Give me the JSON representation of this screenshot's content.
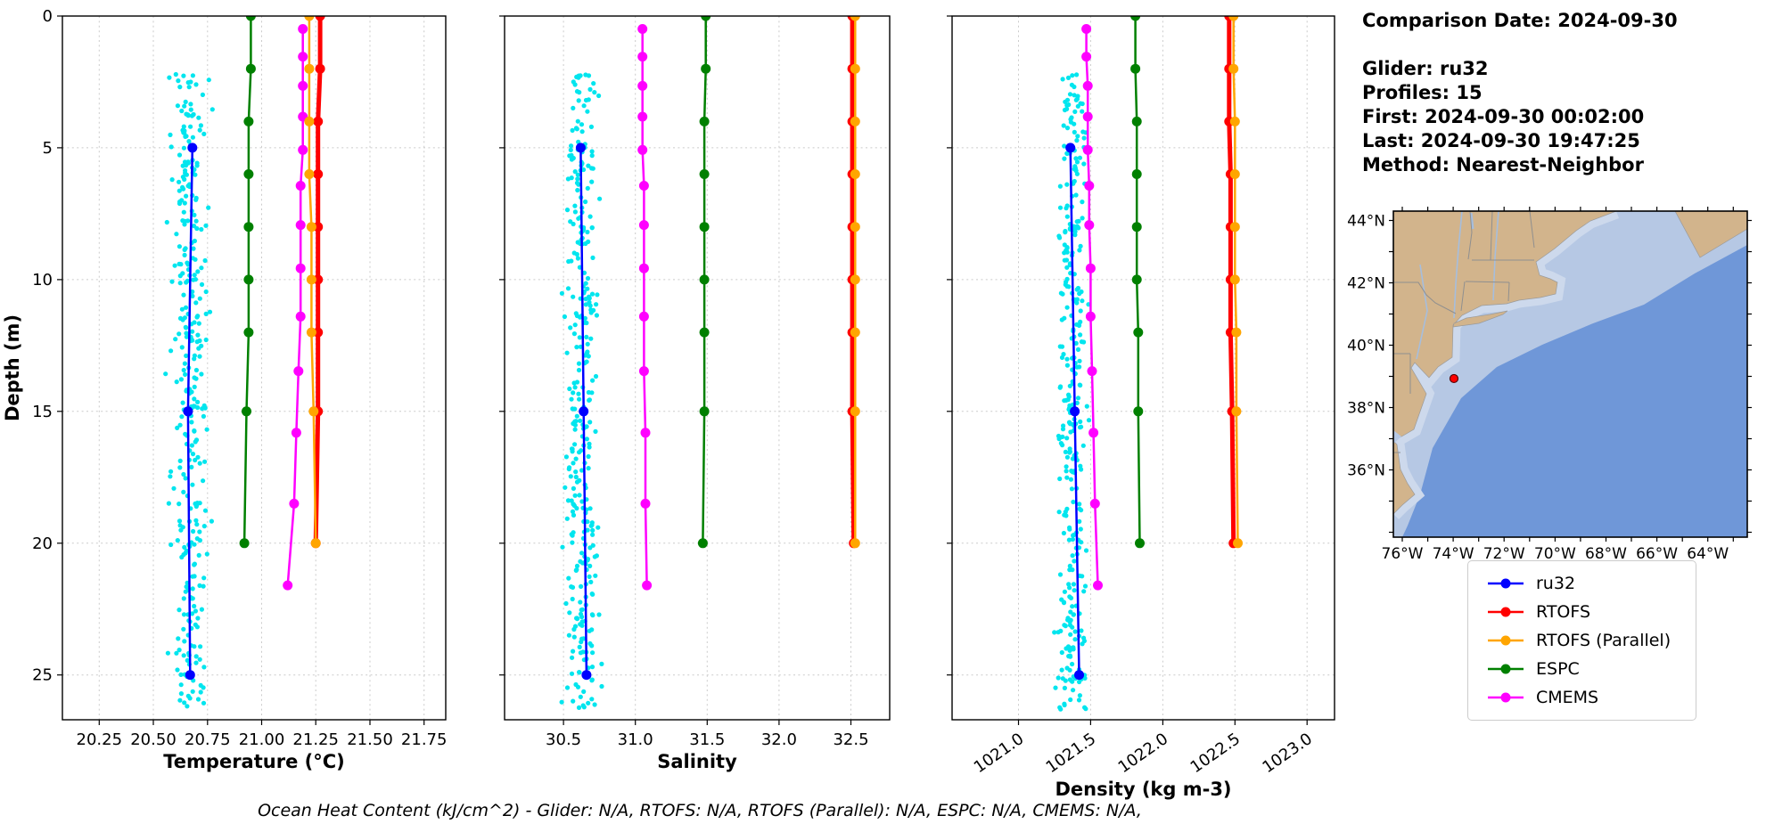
{
  "info_panel": {
    "comparison_date": "Comparison Date: 2024-09-30",
    "lines": [
      "Glider: ru32",
      "Profiles: 15",
      "First: 2024-09-30 00:02:00",
      "Last: 2024-09-30 19:47:25",
      "Method: Nearest-Neighbor"
    ]
  },
  "footer": "Ocean Heat Content (kJ/cm^2) - Glider: N/A,  RTOFS: N/A,  RTOFS (Parallel): N/A,  ESPC: N/A,  CMEMS: N/A,",
  "legend": {
    "entries": [
      {
        "label": "ru32",
        "color": "#0000ff"
      },
      {
        "label": "RTOFS",
        "color": "#ff0000"
      },
      {
        "label": "RTOFS (Parallel)",
        "color": "#ffa500"
      },
      {
        "label": "ESPC",
        "color": "#008000"
      },
      {
        "label": "CMEMS",
        "color": "#ff00ff"
      }
    ]
  },
  "map": {
    "land_color": "#d2b48c",
    "shelf_color": "#b6c8e4",
    "ocean_color": "#6f97d8",
    "coast_water_color": "#cdd9ec",
    "river_color": "#a6bedd",
    "border_color": "#8f8f8f",
    "marker_color": "#ff0000",
    "glider_lat": 38.93,
    "glider_lon": 73.97,
    "lat_ticks": [
      {
        "label": "44°N",
        "lat": 44
      },
      {
        "label": "42°N",
        "lat": 42
      },
      {
        "label": "40°N",
        "lat": 40
      },
      {
        "label": "38°N",
        "lat": 38
      },
      {
        "label": "36°N",
        "lat": 36
      }
    ],
    "lon_ticks": [
      {
        "label": "76°W",
        "lon": 76
      },
      {
        "label": "74°W",
        "lon": 74
      },
      {
        "label": "72°W",
        "lon": 72
      },
      {
        "label": "70°W",
        "lon": 70
      },
      {
        "label": "68°W",
        "lon": 68
      },
      {
        "label": "66°W",
        "lon": 66
      },
      {
        "label": "64°W",
        "lon": 64
      }
    ]
  },
  "chart_data": [
    {
      "type": "line",
      "xlabel": "Temperature (°C)",
      "ylabel": "Depth (m)",
      "xlim": [
        20.08,
        21.85
      ],
      "xticks": [
        20.25,
        20.5,
        20.75,
        21.0,
        21.25,
        21.5,
        21.75
      ],
      "xtick_labels": [
        "20.25",
        "20.50",
        "20.75",
        "21.00",
        "21.25",
        "21.50",
        "21.75"
      ],
      "ylim": [
        0,
        26.7
      ],
      "yticks": [
        0,
        5,
        10,
        15,
        20,
        25
      ],
      "grid": true,
      "scatter": {
        "name": "glider-raw-points",
        "color": "#00e5ee",
        "n": 330,
        "depth_min": 2.2,
        "depth_max": 26.3,
        "center": 20.67,
        "spread": 0.04,
        "seed": 11
      },
      "series": [
        {
          "name": "ESPC",
          "color": "#008000",
          "lw": 2.5,
          "ms": 5.5,
          "depths": [
            0,
            2,
            4,
            6,
            8,
            10,
            12,
            15,
            20
          ],
          "values": [
            20.95,
            20.95,
            20.94,
            20.94,
            20.94,
            20.94,
            20.94,
            20.93,
            20.92
          ]
        },
        {
          "name": "CMEMS",
          "color": "#ff00ff",
          "lw": 2.5,
          "ms": 5.5,
          "depths": [
            0.49,
            1.54,
            2.65,
            3.82,
            5.08,
            6.44,
            7.93,
            9.57,
            11.4,
            13.47,
            15.81,
            18.5,
            21.6
          ],
          "values": [
            21.19,
            21.19,
            21.19,
            21.19,
            21.19,
            21.18,
            21.18,
            21.18,
            21.18,
            21.17,
            21.16,
            21.15,
            21.12
          ]
        },
        {
          "name": "RTOFS",
          "color": "#ff0000",
          "lw": 5,
          "ms": 5.5,
          "depths": [
            0,
            2,
            4,
            6,
            8,
            10,
            12,
            15,
            20
          ],
          "values": [
            21.27,
            21.27,
            21.26,
            21.26,
            21.26,
            21.26,
            21.26,
            21.26,
            21.25
          ]
        },
        {
          "name": "RTOFS (Parallel)",
          "color": "#ffa500",
          "lw": 2.5,
          "ms": 5.5,
          "depths": [
            0,
            2,
            4,
            6,
            8,
            10,
            12,
            15,
            20
          ],
          "values": [
            21.22,
            21.22,
            21.22,
            21.22,
            21.23,
            21.23,
            21.23,
            21.24,
            21.25
          ]
        },
        {
          "name": "ru32",
          "color": "#0000ff",
          "lw": 2.5,
          "ms": 5.5,
          "depths": [
            5,
            15,
            25
          ],
          "values": [
            20.68,
            20.66,
            20.67
          ]
        }
      ]
    },
    {
      "type": "line",
      "xlabel": "Salinity",
      "ylabel": "Depth (m)",
      "xlim": [
        30.09,
        32.77
      ],
      "xticks": [
        30.5,
        31.0,
        31.5,
        32.0,
        32.5
      ],
      "xtick_labels": [
        "30.5",
        "31.0",
        "31.5",
        "32.0",
        "32.5"
      ],
      "ylim": [
        0,
        26.7
      ],
      "yticks": [
        0,
        5,
        10,
        15,
        20,
        25
      ],
      "grid": true,
      "scatter": {
        "name": "glider-raw-points",
        "color": "#00e5ee",
        "n": 330,
        "depth_min": 2.2,
        "depth_max": 26.3,
        "center": 30.63,
        "spread": 0.055,
        "seed": 22
      },
      "series": [
        {
          "name": "ESPC",
          "color": "#008000",
          "lw": 2.5,
          "ms": 5.5,
          "depths": [
            0,
            2,
            4,
            6,
            8,
            10,
            12,
            15,
            20
          ],
          "values": [
            31.49,
            31.49,
            31.48,
            31.48,
            31.48,
            31.48,
            31.48,
            31.48,
            31.47
          ]
        },
        {
          "name": "CMEMS",
          "color": "#ff00ff",
          "lw": 2.5,
          "ms": 5.5,
          "depths": [
            0.49,
            1.54,
            2.65,
            3.82,
            5.08,
            6.44,
            7.93,
            9.57,
            11.4,
            13.47,
            15.81,
            18.5,
            21.6
          ],
          "values": [
            31.05,
            31.05,
            31.05,
            31.05,
            31.05,
            31.06,
            31.06,
            31.06,
            31.06,
            31.06,
            31.07,
            31.07,
            31.08
          ]
        },
        {
          "name": "RTOFS",
          "color": "#ff0000",
          "lw": 5,
          "ms": 5.5,
          "depths": [
            0,
            2,
            4,
            6,
            8,
            10,
            12,
            15,
            20
          ],
          "values": [
            32.51,
            32.51,
            32.51,
            32.51,
            32.51,
            32.51,
            32.51,
            32.51,
            32.52
          ]
        },
        {
          "name": "RTOFS (Parallel)",
          "color": "#ffa500",
          "lw": 2.5,
          "ms": 5.5,
          "depths": [
            0,
            2,
            4,
            6,
            8,
            10,
            12,
            15,
            20
          ],
          "values": [
            32.53,
            32.53,
            32.53,
            32.53,
            32.53,
            32.53,
            32.53,
            32.53,
            32.53
          ]
        },
        {
          "name": "ru32",
          "color": "#0000ff",
          "lw": 2.5,
          "ms": 5.5,
          "depths": [
            5,
            15,
            25
          ],
          "values": [
            30.62,
            30.64,
            30.66
          ]
        }
      ]
    },
    {
      "type": "line",
      "xlabel": "Density (kg m-3)",
      "ylabel": "Depth (m)",
      "xlim": [
        1020.54,
        1023.19
      ],
      "xticks": [
        1021.0,
        1021.5,
        1022.0,
        1022.5,
        1023.0
      ],
      "xtick_labels": [
        "1021.0",
        "1021.5",
        "1022.0",
        "1022.5",
        "1023.0"
      ],
      "ylim": [
        0,
        26.7
      ],
      "yticks": [
        0,
        5,
        10,
        15,
        20,
        25
      ],
      "grid": true,
      "scatter": {
        "name": "glider-raw-points",
        "color": "#00e5ee",
        "n": 330,
        "depth_min": 2.2,
        "depth_max": 26.3,
        "center": 1021.37,
        "spread": 0.045,
        "seed": 33
      },
      "series": [
        {
          "name": "ESPC",
          "color": "#008000",
          "lw": 2.5,
          "ms": 5.5,
          "depths": [
            0,
            2,
            4,
            6,
            8,
            10,
            12,
            15,
            20
          ],
          "values": [
            1021.81,
            1021.81,
            1021.82,
            1021.82,
            1021.82,
            1021.82,
            1021.83,
            1021.83,
            1021.84
          ]
        },
        {
          "name": "CMEMS",
          "color": "#ff00ff",
          "lw": 2.5,
          "ms": 5.5,
          "depths": [
            0.49,
            1.54,
            2.65,
            3.82,
            5.08,
            6.44,
            7.93,
            9.57,
            11.4,
            13.47,
            15.81,
            18.5,
            21.6
          ],
          "values": [
            1021.47,
            1021.47,
            1021.48,
            1021.48,
            1021.48,
            1021.49,
            1021.49,
            1021.5,
            1021.5,
            1021.51,
            1021.52,
            1021.53,
            1021.55
          ]
        },
        {
          "name": "RTOFS",
          "color": "#ff0000",
          "lw": 5,
          "ms": 5.5,
          "depths": [
            0,
            2,
            4,
            6,
            8,
            10,
            12,
            15,
            20
          ],
          "values": [
            1022.46,
            1022.46,
            1022.46,
            1022.47,
            1022.47,
            1022.47,
            1022.47,
            1022.48,
            1022.49
          ]
        },
        {
          "name": "RTOFS (Parallel)",
          "color": "#ffa500",
          "lw": 2.5,
          "ms": 5.5,
          "depths": [
            0,
            2,
            4,
            6,
            8,
            10,
            12,
            15,
            20
          ],
          "values": [
            1022.49,
            1022.49,
            1022.5,
            1022.5,
            1022.5,
            1022.5,
            1022.51,
            1022.51,
            1022.52
          ]
        },
        {
          "name": "ru32",
          "color": "#0000ff",
          "lw": 2.5,
          "ms": 5.5,
          "depths": [
            5,
            15,
            25
          ],
          "values": [
            1021.36,
            1021.39,
            1021.42
          ]
        }
      ]
    }
  ]
}
